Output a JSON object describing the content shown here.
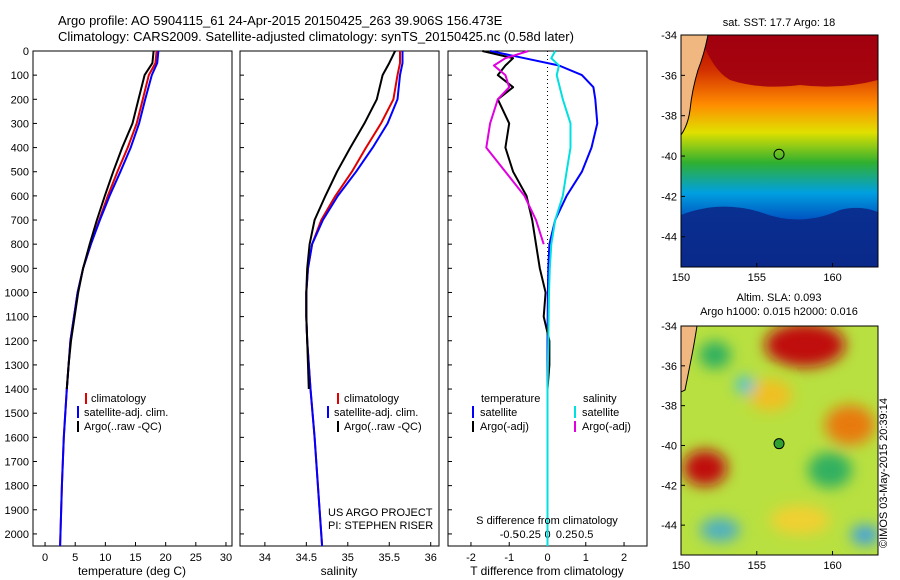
{
  "header": {
    "title_line1": "Argo profile: AO 5904115_61 24-Apr-2015 20150425_263 39.906S 156.473E",
    "title_line2": "Climatology: CARS2009. Satellite-adjusted climatology: synTS_20150425.nc (0.58d later)"
  },
  "colors": {
    "climatology": "#e00000",
    "satellite": "#0000ff",
    "argo": "#000000",
    "s_satellite": "#00e0e0",
    "s_argo": "#e000e0"
  },
  "chart_data": [
    {
      "type": "line",
      "panel": "temperature",
      "xlabel": "temperature (deg C)",
      "xlim": [
        -2,
        31
      ],
      "xticks": [
        0,
        5,
        10,
        15,
        20,
        25,
        30
      ],
      "ylim": [
        2050,
        0
      ],
      "yticks": [
        0,
        100,
        200,
        300,
        400,
        500,
        600,
        700,
        800,
        900,
        1000,
        1100,
        1200,
        1300,
        1400,
        1500,
        1600,
        1700,
        1800,
        1900,
        2000
      ],
      "legend": [
        "climatology",
        "satellite-adj. clim.",
        "Argo(..raw -QC)"
      ],
      "series": [
        {
          "name": "climatology",
          "color": "#e00000",
          "depth": [
            0,
            50,
            100,
            200,
            300,
            400,
            500,
            600,
            700,
            800,
            900,
            1000,
            1200,
            1400,
            1600,
            1800,
            2050
          ],
          "values": [
            18.5,
            18.3,
            17.2,
            16.2,
            15.2,
            13.7,
            12.0,
            10.4,
            9.0,
            7.6,
            6.3,
            5.4,
            4.2,
            3.6,
            3.1,
            2.8,
            2.5
          ]
        },
        {
          "name": "satellite-adj. clim.",
          "color": "#0000ff",
          "depth": [
            0,
            50,
            100,
            200,
            300,
            400,
            500,
            600,
            700,
            800,
            900,
            1000,
            1200,
            1400,
            1600,
            1800,
            2050
          ],
          "values": [
            18.8,
            18.6,
            17.7,
            16.6,
            15.6,
            14.2,
            12.5,
            10.7,
            9.1,
            7.6,
            6.3,
            5.4,
            4.2,
            3.6,
            3.1,
            2.8,
            2.5
          ]
        },
        {
          "name": "Argo(..raw -QC)",
          "color": "#000000",
          "depth": [
            0,
            50,
            100,
            200,
            300,
            400,
            500,
            600,
            700,
            800,
            900,
            1000,
            1100,
            1200,
            1300,
            1400
          ],
          "values": [
            18.0,
            17.8,
            16.5,
            15.5,
            14.5,
            12.8,
            11.3,
            9.9,
            8.6,
            7.4,
            6.3,
            5.5,
            4.9,
            4.3,
            3.9,
            3.6
          ]
        }
      ]
    },
    {
      "type": "line",
      "panel": "salinity",
      "xlabel": "salinity",
      "xlim": [
        33.7,
        36.1
      ],
      "xticks": [
        34,
        34.5,
        35,
        35.5,
        36
      ],
      "ylim": [
        2050,
        0
      ],
      "legend": [
        "climatology",
        "satellite-adj. clim.",
        "Argo(..raw -QC)"
      ],
      "annotation": [
        "US ARGO PROJECT",
        "PI: STEPHEN RISER"
      ],
      "series": [
        {
          "name": "climatology",
          "color": "#e00000",
          "depth": [
            0,
            50,
            100,
            200,
            300,
            400,
            500,
            600,
            700,
            800,
            900,
            1000,
            1100,
            1200,
            1400,
            1600,
            1800,
            2050
          ],
          "values": [
            35.63,
            35.63,
            35.6,
            35.55,
            35.4,
            35.22,
            35.05,
            34.85,
            34.68,
            34.57,
            34.52,
            34.5,
            34.5,
            34.51,
            34.55,
            34.6,
            34.64,
            34.69
          ]
        },
        {
          "name": "satellite-adj. clim.",
          "color": "#0000ff",
          "depth": [
            0,
            50,
            100,
            200,
            300,
            400,
            500,
            600,
            700,
            800,
            900,
            1000,
            1100,
            1200,
            1400,
            1600,
            1800,
            2050
          ],
          "values": [
            35.66,
            35.66,
            35.63,
            35.6,
            35.48,
            35.3,
            35.1,
            34.88,
            34.7,
            34.57,
            34.52,
            34.5,
            34.5,
            34.51,
            34.55,
            34.6,
            34.64,
            34.69
          ]
        },
        {
          "name": "Argo(..raw -QC)",
          "color": "#000000",
          "depth": [
            0,
            50,
            100,
            200,
            300,
            400,
            500,
            600,
            700,
            800,
            900,
            1000,
            1100,
            1200,
            1300,
            1400
          ],
          "values": [
            35.57,
            35.5,
            35.42,
            35.35,
            35.2,
            35.03,
            34.87,
            34.73,
            34.6,
            34.54,
            34.51,
            34.5,
            34.5,
            34.51,
            34.52,
            34.53
          ]
        }
      ]
    },
    {
      "type": "line",
      "panel": "difference",
      "xlabel": "T difference from climatology",
      "top_label": "S difference from climatology",
      "xlim": [
        -2.6,
        2.6
      ],
      "xticks": [
        -2,
        -1,
        0,
        1,
        2
      ],
      "top_ticks": [
        "-0.5",
        "-0.25",
        "0",
        "0.25",
        "0.5"
      ],
      "ylim": [
        2050,
        0
      ],
      "legend_temperature_title": "temperature",
      "legend_salinity_title": "salinity",
      "legend_entries": [
        "satellite",
        "Argo(-adj)",
        "satellite",
        "Argo(-adj)"
      ],
      "series": [
        {
          "name": "T satellite",
          "color": "#0000ff",
          "depth": [
            0,
            30,
            60,
            100,
            150,
            200,
            300,
            400,
            500,
            600,
            700,
            800,
            900,
            1000,
            1200,
            1400,
            1600,
            1800,
            2050
          ],
          "values": [
            -1.5,
            -0.6,
            0.3,
            0.9,
            1.2,
            1.25,
            1.3,
            1.15,
            0.9,
            0.5,
            0.2,
            0.05,
            0.02,
            0.01,
            0,
            0,
            0,
            0,
            0
          ]
        },
        {
          "name": "T Argo(-adj)",
          "color": "#000000",
          "depth": [
            0,
            30,
            60,
            100,
            150,
            200,
            300,
            400,
            500,
            600,
            700,
            800,
            900,
            1000,
            1100,
            1200,
            1300,
            1400
          ],
          "values": [
            -1.7,
            -0.9,
            -1.1,
            -1.3,
            -0.9,
            -1.3,
            -1.0,
            -1.1,
            -0.9,
            -0.55,
            -0.4,
            -0.3,
            -0.2,
            -0.05,
            -0.1,
            0.05,
            0.05,
            0.0
          ]
        },
        {
          "name": "S satellite",
          "color": "#00e0e0",
          "depth": [
            0,
            30,
            60,
            100,
            200,
            300,
            400,
            500,
            600,
            700,
            800,
            900,
            1000,
            1200,
            1400,
            1600,
            1800,
            2050
          ],
          "values": [
            0.1,
            0.05,
            0.15,
            0.12,
            0.2,
            0.3,
            0.3,
            0.25,
            0.2,
            0.1,
            0.05,
            0.03,
            0.02,
            0.01,
            0,
            0,
            0,
            0
          ]
        },
        {
          "name": "S Argo(-adj)",
          "color": "#e000e0",
          "depth": [
            0,
            30,
            60,
            100,
            150,
            200,
            300,
            400,
            500,
            600,
            700,
            800
          ],
          "values": [
            -0.25,
            -0.55,
            -0.7,
            -0.55,
            -0.5,
            -0.65,
            -0.75,
            -0.8,
            -0.55,
            -0.3,
            -0.15,
            -0.05
          ]
        }
      ]
    },
    {
      "type": "heatmap",
      "panel": "sst_map",
      "title": "sat. SST: 17.7 Argo: 18",
      "xlim": [
        150,
        163
      ],
      "ylim": [
        -45.5,
        -34
      ],
      "xticks": [
        150,
        155,
        160
      ],
      "yticks": [
        -34,
        -36,
        -38,
        -40,
        -42,
        -44
      ],
      "marker": {
        "lon": 156.47,
        "lat": -39.91
      }
    },
    {
      "type": "heatmap",
      "panel": "sla_map",
      "title_line1": "Altim. SLA: 0.093",
      "title_line2": "Argo h1000: 0.015 h2000: 0.016",
      "xlim": [
        150,
        163
      ],
      "ylim": [
        -45.5,
        -34
      ],
      "xticks": [
        150,
        155,
        160
      ],
      "yticks": [
        -34,
        -36,
        -38,
        -40,
        -42,
        -44
      ],
      "marker": {
        "lon": 156.47,
        "lat": -39.91
      }
    }
  ],
  "stamp": "©IMOS 03-May-2015 20:39:14"
}
